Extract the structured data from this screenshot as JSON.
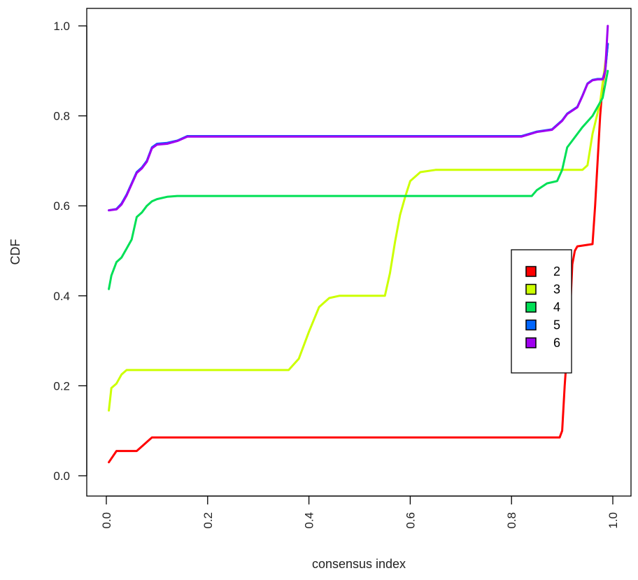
{
  "chart_data": {
    "type": "line",
    "title": "",
    "xlabel": "consensus index",
    "ylabel": "CDF",
    "xlim": [
      0,
      1
    ],
    "ylim": [
      0,
      1
    ],
    "x_ticks": [
      "0.0",
      "0.2",
      "0.4",
      "0.6",
      "0.8",
      "1.0"
    ],
    "y_ticks": [
      "0.0",
      "0.2",
      "0.4",
      "0.6",
      "0.8",
      "1.0"
    ],
    "grid": false,
    "legend_position": "right",
    "series": [
      {
        "name": "2",
        "color": "#ff0000",
        "x": [
          0.005,
          0.02,
          0.06,
          0.08,
          0.09,
          0.5,
          0.895,
          0.9,
          0.905,
          0.91,
          0.915,
          0.92,
          0.925,
          0.93,
          0.96,
          0.965,
          0.975,
          0.98,
          0.985,
          0.99
        ],
        "y": [
          0.03,
          0.055,
          0.055,
          0.075,
          0.085,
          0.085,
          0.085,
          0.1,
          0.2,
          0.28,
          0.35,
          0.47,
          0.5,
          0.51,
          0.515,
          0.6,
          0.8,
          0.87,
          0.9,
          0.96
        ]
      },
      {
        "name": "3",
        "color": "#ccff00",
        "x": [
          0.005,
          0.01,
          0.02,
          0.03,
          0.04,
          0.2,
          0.36,
          0.38,
          0.4,
          0.42,
          0.44,
          0.46,
          0.5,
          0.55,
          0.56,
          0.57,
          0.58,
          0.59,
          0.6,
          0.62,
          0.65,
          0.8,
          0.94,
          0.95,
          0.96,
          0.975,
          0.99
        ],
        "y": [
          0.145,
          0.195,
          0.205,
          0.225,
          0.235,
          0.235,
          0.235,
          0.26,
          0.32,
          0.375,
          0.395,
          0.4,
          0.4,
          0.4,
          0.45,
          0.52,
          0.58,
          0.62,
          0.655,
          0.675,
          0.68,
          0.68,
          0.68,
          0.69,
          0.76,
          0.83,
          0.96
        ]
      },
      {
        "name": "4",
        "color": "#00e056",
        "x": [
          0.005,
          0.01,
          0.02,
          0.03,
          0.04,
          0.05,
          0.06,
          0.07,
          0.08,
          0.09,
          0.1,
          0.12,
          0.14,
          0.5,
          0.84,
          0.85,
          0.87,
          0.89,
          0.9,
          0.91,
          0.92,
          0.94,
          0.96,
          0.98,
          0.99
        ],
        "y": [
          0.415,
          0.445,
          0.475,
          0.485,
          0.505,
          0.525,
          0.575,
          0.585,
          0.6,
          0.61,
          0.615,
          0.62,
          0.622,
          0.622,
          0.622,
          0.635,
          0.65,
          0.655,
          0.68,
          0.73,
          0.745,
          0.775,
          0.8,
          0.84,
          0.9
        ]
      },
      {
        "name": "5",
        "color": "#0066ff",
        "x": [
          0.005,
          0.02,
          0.03,
          0.04,
          0.05,
          0.06,
          0.07,
          0.08,
          0.09,
          0.1,
          0.12,
          0.14,
          0.16,
          0.2,
          0.5,
          0.82,
          0.85,
          0.88,
          0.9,
          0.91,
          0.93,
          0.94,
          0.95,
          0.96,
          0.97,
          0.98,
          0.985,
          0.99
        ],
        "y": [
          0.59,
          0.593,
          0.605,
          0.625,
          0.65,
          0.675,
          0.685,
          0.7,
          0.73,
          0.738,
          0.74,
          0.745,
          0.755,
          0.755,
          0.755,
          0.755,
          0.765,
          0.77,
          0.79,
          0.805,
          0.82,
          0.845,
          0.872,
          0.88,
          0.882,
          0.882,
          0.9,
          0.96
        ]
      },
      {
        "name": "6",
        "color": "#a000f0",
        "x": [
          0.005,
          0.02,
          0.03,
          0.04,
          0.05,
          0.06,
          0.07,
          0.08,
          0.09,
          0.1,
          0.12,
          0.14,
          0.16,
          0.2,
          0.5,
          0.82,
          0.85,
          0.88,
          0.9,
          0.91,
          0.93,
          0.94,
          0.95,
          0.96,
          0.97,
          0.98,
          0.985,
          0.99
        ],
        "y": [
          0.59,
          0.592,
          0.603,
          0.623,
          0.648,
          0.673,
          0.683,
          0.698,
          0.728,
          0.736,
          0.738,
          0.744,
          0.754,
          0.754,
          0.754,
          0.754,
          0.764,
          0.769,
          0.789,
          0.804,
          0.819,
          0.844,
          0.871,
          0.879,
          0.881,
          0.881,
          0.9,
          1.0
        ]
      }
    ]
  }
}
